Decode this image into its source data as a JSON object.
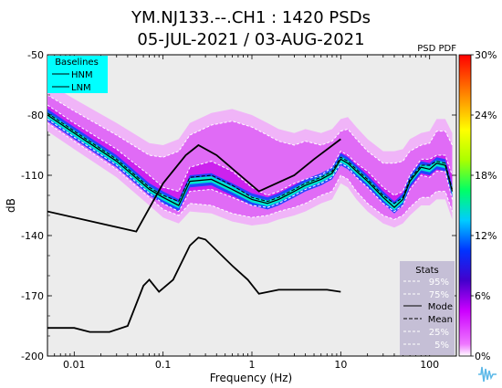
{
  "chart_data": {
    "type": "heatmap",
    "title_line1": "YM.NJ133.--.CH1 : 1420 PSDs",
    "title_line2": "05-JUL-2021 / 03-AUG-2021",
    "xlabel": "Frequency (Hz)",
    "ylabel": "dB",
    "x_scale": "log",
    "xlim": [
      0.005,
      200
    ],
    "ylim": [
      -200,
      -50
    ],
    "x_ticks": [
      {
        "value": 0.01,
        "label": "0.01"
      },
      {
        "value": 0.1,
        "label": "0.1"
      },
      {
        "value": 1,
        "label": "1"
      },
      {
        "value": 10,
        "label": "10"
      },
      {
        "value": 100,
        "label": "100"
      }
    ],
    "y_ticks": [
      {
        "value": -50,
        "label": "-50"
      },
      {
        "value": -80,
        "label": "-80"
      },
      {
        "value": -110,
        "label": "-110"
      },
      {
        "value": -140,
        "label": "-140"
      },
      {
        "value": -170,
        "label": "-170"
      },
      {
        "value": -200,
        "label": "-200"
      }
    ],
    "colorbar": {
      "title": "PSD PDF",
      "ticks": [
        "30%",
        "24%",
        "18%",
        "12%",
        "6%",
        "0%"
      ],
      "colors": [
        "#ff0000",
        "#ff9900",
        "#ffff00",
        "#00ff66",
        "#00ffff",
        "#0066ff",
        "#0000cc",
        "#cc00ff",
        "#ee77ff"
      ]
    },
    "baselines": {
      "title": "Baselines",
      "items": [
        "HNM",
        "LNM"
      ],
      "HNM": [
        [
          0.005,
          -128
        ],
        [
          0.05,
          -138
        ],
        [
          0.1,
          -114
        ],
        [
          0.18,
          -100
        ],
        [
          0.25,
          -95
        ],
        [
          0.4,
          -100
        ],
        [
          1.2,
          -118
        ],
        [
          3,
          -110
        ],
        [
          5,
          -102
        ],
        [
          10,
          -92
        ]
      ],
      "LNM": [
        [
          0.005,
          -186
        ],
        [
          0.01,
          -186
        ],
        [
          0.015,
          -188
        ],
        [
          0.025,
          -188
        ],
        [
          0.04,
          -185
        ],
        [
          0.06,
          -165
        ],
        [
          0.07,
          -162
        ],
        [
          0.09,
          -168
        ],
        [
          0.13,
          -162
        ],
        [
          0.2,
          -145
        ],
        [
          0.25,
          -141
        ],
        [
          0.3,
          -142
        ],
        [
          0.6,
          -155
        ],
        [
          0.9,
          -162
        ],
        [
          1.2,
          -169
        ],
        [
          2,
          -167
        ],
        [
          4,
          -167
        ],
        [
          7,
          -167
        ],
        [
          10,
          -168
        ]
      ]
    },
    "stats": {
      "title": "Stats",
      "items": [
        "95%",
        "75%",
        "Mode",
        "Mean",
        "25%",
        "5%"
      ]
    },
    "series": [
      {
        "name": "95%",
        "x": [
          0.005,
          0.01,
          0.03,
          0.07,
          0.1,
          0.15,
          0.2,
          0.35,
          0.6,
          1,
          1.5,
          2,
          3,
          4,
          6,
          8,
          10,
          12,
          15,
          20,
          30,
          40,
          50,
          60,
          80,
          100,
          120,
          150,
          180
        ],
        "y": [
          -70,
          -78,
          -90,
          -100,
          -101,
          -98,
          -90,
          -85,
          -83,
          -86,
          -90,
          -93,
          -95,
          -93,
          -95,
          -93,
          -88,
          -87,
          -92,
          -98,
          -104,
          -104,
          -103,
          -98,
          -95,
          -94,
          -88,
          -88,
          -95
        ]
      },
      {
        "name": "75%",
        "x": [
          0.005,
          0.01,
          0.03,
          0.07,
          0.1,
          0.15,
          0.2,
          0.35,
          0.6,
          1,
          1.5,
          2,
          3,
          4,
          6,
          8,
          10,
          12,
          15,
          20,
          30,
          40,
          50,
          60,
          80,
          100,
          120,
          150,
          180
        ],
        "y": [
          -75,
          -84,
          -97,
          -110,
          -116,
          -118,
          -106,
          -103,
          -108,
          -116,
          -120,
          -118,
          -114,
          -112,
          -110,
          -106,
          -98,
          -100,
          -104,
          -108,
          -116,
          -120,
          -118,
          -110,
          -102,
          -102,
          -100,
          -100,
          -110
        ]
      },
      {
        "name": "Mode",
        "x": [
          0.005,
          0.01,
          0.03,
          0.07,
          0.1,
          0.15,
          0.2,
          0.35,
          0.6,
          1,
          1.5,
          2,
          3,
          4,
          6,
          8,
          10,
          12,
          15,
          20,
          30,
          40,
          50,
          60,
          80,
          100,
          120,
          150,
          180
        ],
        "y": [
          -80,
          -89,
          -103,
          -117,
          -121,
          -125,
          -113,
          -112,
          -117,
          -122,
          -124,
          -122,
          -118,
          -115,
          -112,
          -109,
          -102,
          -104,
          -108,
          -113,
          -121,
          -126,
          -122,
          -113,
          -106,
          -107,
          -104,
          -105,
          -118
        ]
      },
      {
        "name": "Mean",
        "x": [
          0.005,
          0.01,
          0.03,
          0.07,
          0.1,
          0.15,
          0.2,
          0.35,
          0.6,
          1,
          1.5,
          2,
          3,
          4,
          6,
          8,
          10,
          12,
          15,
          20,
          30,
          40,
          50,
          60,
          80,
          100,
          120,
          150,
          180
        ],
        "y": [
          -79,
          -88,
          -102,
          -116,
          -120,
          -123,
          -111,
          -110,
          -115,
          -121,
          -123,
          -121,
          -117,
          -114,
          -111,
          -108,
          -101,
          -103,
          -107,
          -112,
          -120,
          -124,
          -121,
          -112,
          -105,
          -105,
          -103,
          -104,
          -117
        ]
      },
      {
        "name": "25%",
        "x": [
          0.005,
          0.01,
          0.03,
          0.07,
          0.1,
          0.15,
          0.2,
          0.35,
          0.6,
          1,
          1.5,
          2,
          3,
          4,
          6,
          8,
          10,
          12,
          15,
          20,
          30,
          40,
          50,
          60,
          80,
          100,
          120,
          150,
          180
        ],
        "y": [
          -82,
          -91,
          -105,
          -119,
          -124,
          -128,
          -118,
          -117,
          -121,
          -125,
          -126,
          -124,
          -120,
          -117,
          -114,
          -111,
          -104,
          -106,
          -111,
          -116,
          -124,
          -128,
          -125,
          -117,
          -110,
          -111,
          -108,
          -108,
          -122
        ]
      },
      {
        "name": "5%",
        "x": [
          0.005,
          0.01,
          0.03,
          0.07,
          0.1,
          0.15,
          0.2,
          0.35,
          0.6,
          1,
          1.5,
          2,
          3,
          4,
          6,
          8,
          10,
          12,
          15,
          20,
          30,
          40,
          50,
          60,
          80,
          100,
          120,
          150,
          180
        ],
        "y": [
          -84,
          -93,
          -107,
          -121,
          -127,
          -130,
          -124,
          -125,
          -129,
          -131,
          -130,
          -128,
          -126,
          -124,
          -120,
          -118,
          -110,
          -112,
          -118,
          -124,
          -130,
          -132,
          -130,
          -126,
          -121,
          -121,
          -118,
          -118,
          -128
        ]
      }
    ]
  }
}
